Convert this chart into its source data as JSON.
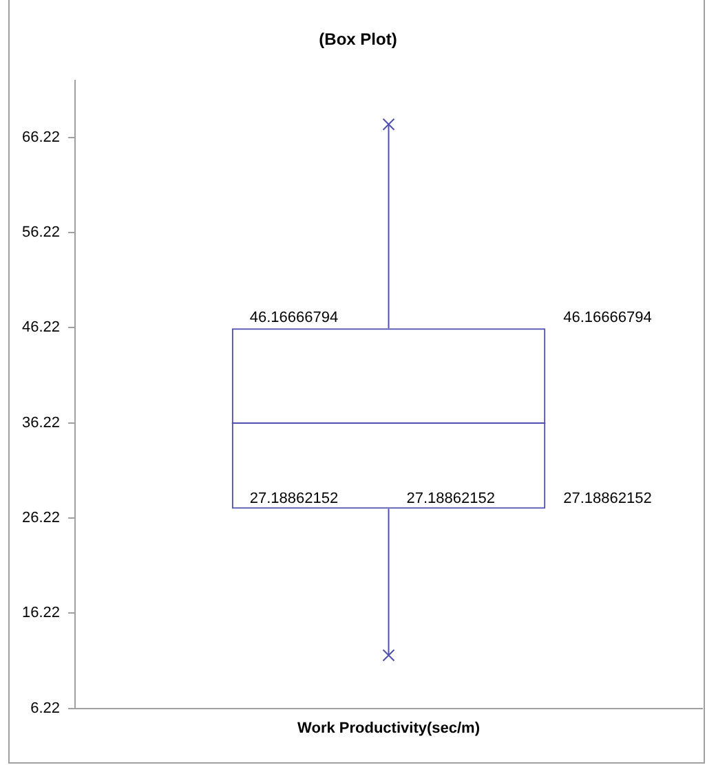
{
  "chart_data": {
    "type": "box",
    "title": "(Box Plot)",
    "categories": [
      "Work Productivity(sec/m)"
    ],
    "boxes": [
      {
        "low": 11.8,
        "q1": 27.18862152,
        "median": 36.2,
        "q3": 46.16666794,
        "high": 67.6,
        "outliers": [
          11.8,
          67.6
        ]
      }
    ],
    "color": "#4f4fb0",
    "marker": "cross",
    "ylim": [
      6.22,
      72.22
    ],
    "yticks": [
      6.22,
      16.22,
      26.22,
      36.22,
      46.22,
      56.22,
      66.22
    ],
    "grid": false,
    "annotations": [
      "46.16666794",
      "46.16666794",
      "27.18862152",
      "27.18862152",
      "27.18862152"
    ]
  }
}
